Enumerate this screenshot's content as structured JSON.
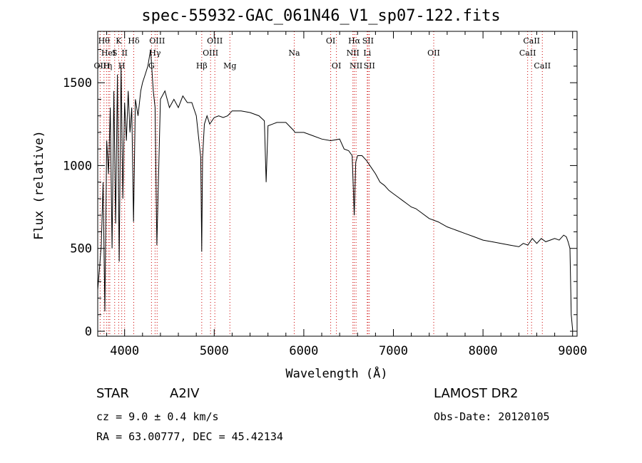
{
  "chart_data": {
    "type": "line",
    "title": "spec-55932-GAC_061N46_V1_sp07-122.fits",
    "xlabel": "Wavelength (Å)",
    "ylabel": "Flux (relative)",
    "xlim": [
      3700,
      9050
    ],
    "ylim": [
      -30,
      1810
    ],
    "xticks": [
      4000,
      5000,
      6000,
      7000,
      8000,
      9000
    ],
    "yticks": [
      0,
      500,
      1000,
      1500
    ],
    "grid": false,
    "line_color": "#000000",
    "marker_color": "#cc0000",
    "series": [
      {
        "x": [
          3700,
          3720,
          3740,
          3760,
          3780,
          3800,
          3820,
          3840,
          3860,
          3880,
          3900,
          3920,
          3940,
          3960,
          3980,
          4000,
          4020,
          4040,
          4060,
          4080,
          4100,
          4120,
          4150,
          4180,
          4200,
          4230,
          4260,
          4290,
          4320,
          4340,
          4360,
          4400,
          4450,
          4500,
          4550,
          4600,
          4650,
          4700,
          4750,
          4800,
          4830,
          4850,
          4861,
          4870,
          4890,
          4920,
          4950,
          5000,
          5050,
          5100,
          5150,
          5200,
          5300,
          5400,
          5500,
          5560,
          5580,
          5600,
          5700,
          5800,
          5890,
          5900,
          6000,
          6100,
          6200,
          6300,
          6400,
          6450,
          6500,
          6540,
          6563,
          6580,
          6600,
          6650,
          6700,
          6750,
          6800,
          6850,
          6900,
          6950,
          7000,
          7050,
          7100,
          7150,
          7200,
          7250,
          7300,
          7400,
          7500,
          7600,
          7700,
          7800,
          7900,
          8000,
          8100,
          8200,
          8300,
          8400,
          8450,
          8500,
          8550,
          8600,
          8650,
          8700,
          8750,
          8800,
          8850,
          8900,
          8930,
          8950,
          8970,
          8985,
          9000
        ],
        "y": [
          250,
          380,
          520,
          900,
          120,
          1150,
          950,
          1350,
          500,
          1450,
          650,
          1550,
          420,
          1600,
          800,
          1380,
          1150,
          1450,
          1200,
          1350,
          660,
          1400,
          1300,
          1450,
          1500,
          1550,
          1600,
          1700,
          1450,
          1350,
          520,
          1400,
          1450,
          1350,
          1400,
          1350,
          1420,
          1380,
          1380,
          1300,
          1150,
          1050,
          480,
          1050,
          1250,
          1300,
          1250,
          1290,
          1300,
          1290,
          1300,
          1330,
          1330,
          1320,
          1300,
          1270,
          900,
          1240,
          1260,
          1260,
          1210,
          1200,
          1200,
          1180,
          1160,
          1150,
          1160,
          1100,
          1090,
          1060,
          700,
          1020,
          1060,
          1060,
          1030,
          990,
          950,
          900,
          880,
          850,
          830,
          810,
          790,
          770,
          750,
          740,
          720,
          680,
          660,
          630,
          610,
          590,
          570,
          550,
          540,
          530,
          520,
          510,
          530,
          520,
          560,
          530,
          560,
          540,
          550,
          560,
          550,
          580,
          570,
          540,
          500,
          100,
          10
        ]
      }
    ],
    "lines": [
      {
        "wl": 3727,
        "row": 3,
        "label": "OII"
      },
      {
        "wl": 3770,
        "row": 1,
        "label": "Hθ"
      },
      {
        "wl": 3798,
        "row": 3,
        "label": "H"
      },
      {
        "wl": 3820,
        "row": 2,
        "label": "HeI"
      },
      {
        "wl": 3835,
        "row": 3,
        "label": "η"
      },
      {
        "wl": 3889,
        "row": 2,
        "label": "S"
      },
      {
        "wl": 3934,
        "row": 1,
        "label": "K"
      },
      {
        "wl": 3968,
        "row": 3,
        "label": "H"
      },
      {
        "wl": 4000,
        "row": 2,
        "label": "II"
      },
      {
        "wl": 4102,
        "row": 1,
        "label": "Hδ"
      },
      {
        "wl": 4300,
        "row": 3,
        "label": "G"
      },
      {
        "wl": 4340,
        "row": 2,
        "label": "Hγ"
      },
      {
        "wl": 4363,
        "row": 1,
        "label": "OIII"
      },
      {
        "wl": 4861,
        "row": 3,
        "label": "Hβ"
      },
      {
        "wl": 4959,
        "row": 2,
        "label": "OIII"
      },
      {
        "wl": 5007,
        "row": 1,
        "label": "OIII"
      },
      {
        "wl": 5175,
        "row": 3,
        "label": "Mg"
      },
      {
        "wl": 5893,
        "row": 2,
        "label": "Na"
      },
      {
        "wl": 6300,
        "row": 1,
        "label": "OI"
      },
      {
        "wl": 6364,
        "row": 3,
        "label": "OI"
      },
      {
        "wl": 6548,
        "row": 2,
        "label": "NII"
      },
      {
        "wl": 6563,
        "row": 1,
        "label": "Hα"
      },
      {
        "wl": 6583,
        "row": 3,
        "label": "NII"
      },
      {
        "wl": 6708,
        "row": 2,
        "label": "Li"
      },
      {
        "wl": 6716,
        "row": 1,
        "label": "SII"
      },
      {
        "wl": 6731,
        "row": 3,
        "label": "SII"
      },
      {
        "wl": 7450,
        "row": 2,
        "label": "OII"
      },
      {
        "wl": 8498,
        "row": 2,
        "label": "CaII"
      },
      {
        "wl": 8542,
        "row": 1,
        "label": "CaII"
      },
      {
        "wl": 8662,
        "row": 3,
        "label": "CaII"
      }
    ]
  },
  "info": {
    "object_class": "STAR",
    "subclass": "A2IV",
    "survey": "LAMOST  DR2",
    "redshift": "cz = 9.0 ± 0.4 km/s",
    "obs_date": "Obs-Date: 20120105",
    "coords": "RA =  63.00777, DEC =  45.42134"
  }
}
